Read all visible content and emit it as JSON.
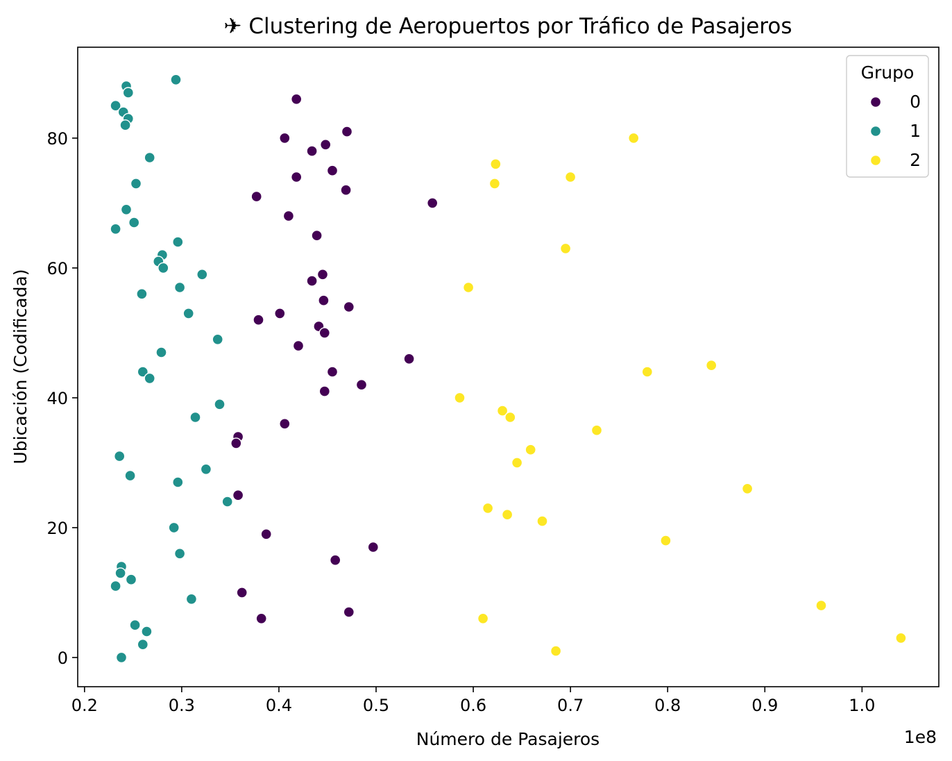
{
  "chart_data": {
    "type": "scatter",
    "title": "✈ Clustering de Aeropuertos por Tráfico de Pasajeros",
    "xlabel": "Número de Pasajeros",
    "ylabel": "Ubicación (Codificada)",
    "x_offset_label": "1e8",
    "xlim": [
      0.193,
      1.079
    ],
    "ylim": [
      -4.5,
      94
    ],
    "xticks": [
      0.2,
      0.3,
      0.4,
      0.5,
      0.6,
      0.7,
      0.8,
      0.9,
      1.0
    ],
    "xtick_labels": [
      "0.2",
      "0.3",
      "0.4",
      "0.5",
      "0.6",
      "0.7",
      "0.8",
      "0.9",
      "1.0"
    ],
    "yticks": [
      0,
      20,
      40,
      60,
      80
    ],
    "ytick_labels": [
      "0",
      "20",
      "40",
      "60",
      "80"
    ],
    "grid": false,
    "legend": {
      "title": "Grupo",
      "placement": "top-right"
    },
    "series": [
      {
        "name": "0",
        "color": "#440154",
        "points": [
          [
            0.418,
            86
          ],
          [
            0.47,
            81
          ],
          [
            0.406,
            80
          ],
          [
            0.448,
            79
          ],
          [
            0.434,
            78
          ],
          [
            0.455,
            75
          ],
          [
            0.418,
            74
          ],
          [
            0.469,
            72
          ],
          [
            0.377,
            71
          ],
          [
            0.558,
            70
          ],
          [
            0.41,
            68
          ],
          [
            0.439,
            65
          ],
          [
            0.445,
            59
          ],
          [
            0.434,
            58
          ],
          [
            0.446,
            55
          ],
          [
            0.472,
            54
          ],
          [
            0.401,
            53
          ],
          [
            0.379,
            52
          ],
          [
            0.441,
            51
          ],
          [
            0.447,
            50
          ],
          [
            0.42,
            48
          ],
          [
            0.534,
            46
          ],
          [
            0.455,
            44
          ],
          [
            0.485,
            42
          ],
          [
            0.447,
            41
          ],
          [
            0.406,
            36
          ],
          [
            0.358,
            34
          ],
          [
            0.356,
            33
          ],
          [
            0.358,
            25
          ],
          [
            0.387,
            19
          ],
          [
            0.497,
            17
          ],
          [
            0.458,
            15
          ],
          [
            0.362,
            10
          ],
          [
            0.472,
            7
          ],
          [
            0.382,
            6
          ]
        ]
      },
      {
        "name": "1",
        "color": "#21918c",
        "points": [
          [
            0.294,
            89
          ],
          [
            0.243,
            88
          ],
          [
            0.245,
            87
          ],
          [
            0.232,
            85
          ],
          [
            0.24,
            84
          ],
          [
            0.245,
            83
          ],
          [
            0.242,
            82
          ],
          [
            0.267,
            77
          ],
          [
            0.253,
            73
          ],
          [
            0.243,
            69
          ],
          [
            0.251,
            67
          ],
          [
            0.232,
            66
          ],
          [
            0.296,
            64
          ],
          [
            0.28,
            62
          ],
          [
            0.276,
            61
          ],
          [
            0.281,
            60
          ],
          [
            0.321,
            59
          ],
          [
            0.298,
            57
          ],
          [
            0.259,
            56
          ],
          [
            0.307,
            53
          ],
          [
            0.337,
            49
          ],
          [
            0.279,
            47
          ],
          [
            0.26,
            44
          ],
          [
            0.267,
            43
          ],
          [
            0.339,
            39
          ],
          [
            0.314,
            37
          ],
          [
            0.236,
            31
          ],
          [
            0.247,
            28
          ],
          [
            0.325,
            29
          ],
          [
            0.296,
            27
          ],
          [
            0.347,
            24
          ],
          [
            0.292,
            20
          ],
          [
            0.298,
            16
          ],
          [
            0.238,
            14
          ],
          [
            0.237,
            13
          ],
          [
            0.248,
            12
          ],
          [
            0.232,
            11
          ],
          [
            0.31,
            9
          ],
          [
            0.252,
            5
          ],
          [
            0.264,
            4
          ],
          [
            0.26,
            2
          ],
          [
            0.238,
            0
          ]
        ]
      },
      {
        "name": "2",
        "color": "#fde725",
        "points": [
          [
            0.765,
            80
          ],
          [
            0.623,
            76
          ],
          [
            0.7,
            74
          ],
          [
            0.622,
            73
          ],
          [
            0.695,
            63
          ],
          [
            0.595,
            57
          ],
          [
            0.845,
            45
          ],
          [
            0.779,
            44
          ],
          [
            0.586,
            40
          ],
          [
            0.63,
            38
          ],
          [
            0.638,
            37
          ],
          [
            0.727,
            35
          ],
          [
            0.659,
            32
          ],
          [
            0.645,
            30
          ],
          [
            0.882,
            26
          ],
          [
            0.615,
            23
          ],
          [
            0.635,
            22
          ],
          [
            0.671,
            21
          ],
          [
            0.798,
            18
          ],
          [
            0.958,
            8
          ],
          [
            0.61,
            6
          ],
          [
            1.04,
            3
          ],
          [
            0.685,
            1
          ]
        ]
      }
    ]
  }
}
